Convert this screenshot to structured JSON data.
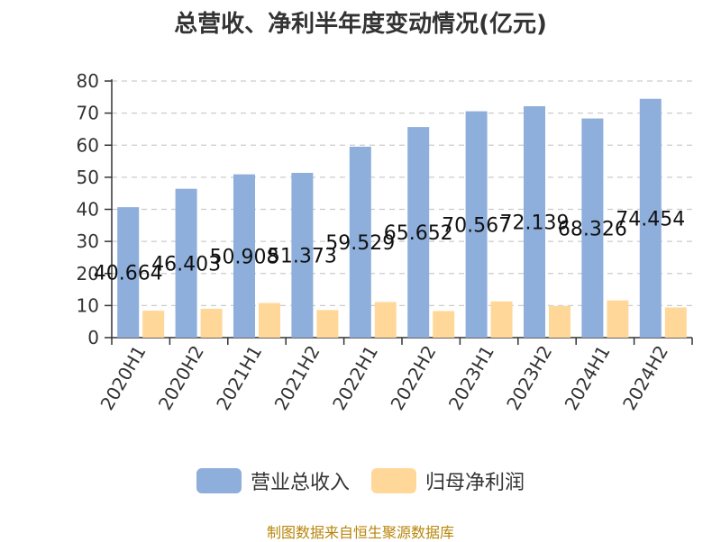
{
  "chart_data": {
    "type": "bar",
    "title": "总营收、净利半年度变动情况(亿元)",
    "categories": [
      "2020H1",
      "2020H2",
      "2021H1",
      "2021H2",
      "2022H1",
      "2022H2",
      "2023H1",
      "2023H2",
      "2024H1",
      "2024H2"
    ],
    "series": [
      {
        "name": "营业总收入",
        "color": "#8eaedb",
        "values": [
          40.664,
          46.403,
          50.908,
          51.373,
          59.529,
          65.652,
          70.567,
          72.139,
          68.326,
          74.454
        ],
        "labels": [
          "40.664",
          "46.403",
          "50.908",
          "51.373",
          "59.529",
          "65.652",
          "70.567",
          "72.139",
          "68.326",
          "74.454"
        ]
      },
      {
        "name": "归母净利润",
        "color": "#ffd899",
        "values": [
          8.4,
          9.0,
          10.8,
          8.6,
          11.1,
          8.3,
          11.3,
          9.9,
          11.6,
          9.4
        ]
      }
    ],
    "yticks": [
      0,
      10,
      20,
      30,
      40,
      50,
      60,
      70,
      80
    ],
    "ylim": [
      0,
      80
    ],
    "xlabel": "",
    "ylabel": "",
    "grid": true,
    "legend": "bottom"
  },
  "source": "制图数据来自恒生聚源数据库"
}
